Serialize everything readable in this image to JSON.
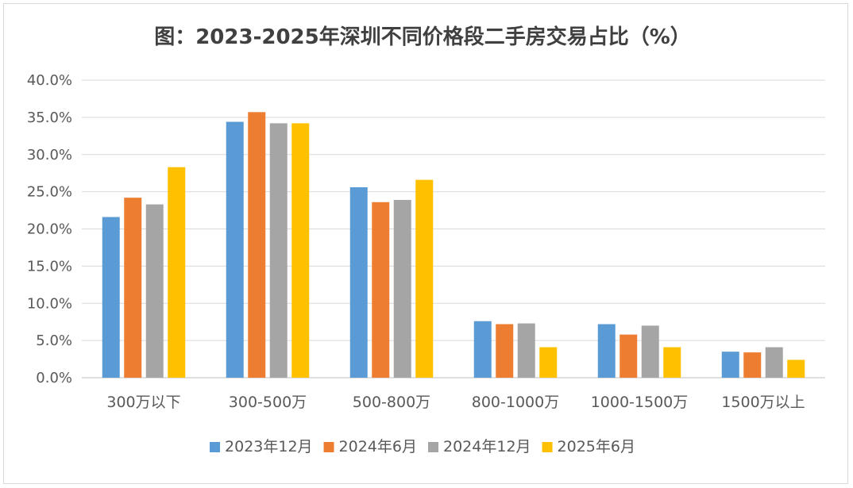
{
  "chart_data": {
    "type": "bar",
    "title": "图：2023-2025年深圳不同价格段二手房交易占比（%）",
    "xlabel": "",
    "ylabel": "",
    "ylim": [
      0,
      40
    ],
    "ytick_step": 5,
    "ytick_labels": [
      "0.0%",
      "5.0%",
      "10.0%",
      "15.0%",
      "20.0%",
      "25.0%",
      "30.0%",
      "35.0%",
      "40.0%"
    ],
    "grid": true,
    "legend_position": "bottom",
    "categories": [
      "300万以下",
      "300-500万",
      "500-800万",
      "800-1000万",
      "1000-1500万",
      "1500万以上"
    ],
    "series": [
      {
        "name": "2023年12月",
        "color": "#5b9bd5",
        "values": [
          21.6,
          34.4,
          25.6,
          7.6,
          7.2,
          3.5
        ]
      },
      {
        "name": "2024年6月",
        "color": "#ed7d31",
        "values": [
          24.2,
          35.7,
          23.6,
          7.2,
          5.8,
          3.4
        ]
      },
      {
        "name": "2024年12月",
        "color": "#a5a5a5",
        "values": [
          23.3,
          34.2,
          23.9,
          7.3,
          7.0,
          4.1
        ]
      },
      {
        "name": "2025年6月",
        "color": "#ffc000",
        "values": [
          28.3,
          34.2,
          26.6,
          4.1,
          4.1,
          2.4
        ]
      }
    ]
  }
}
